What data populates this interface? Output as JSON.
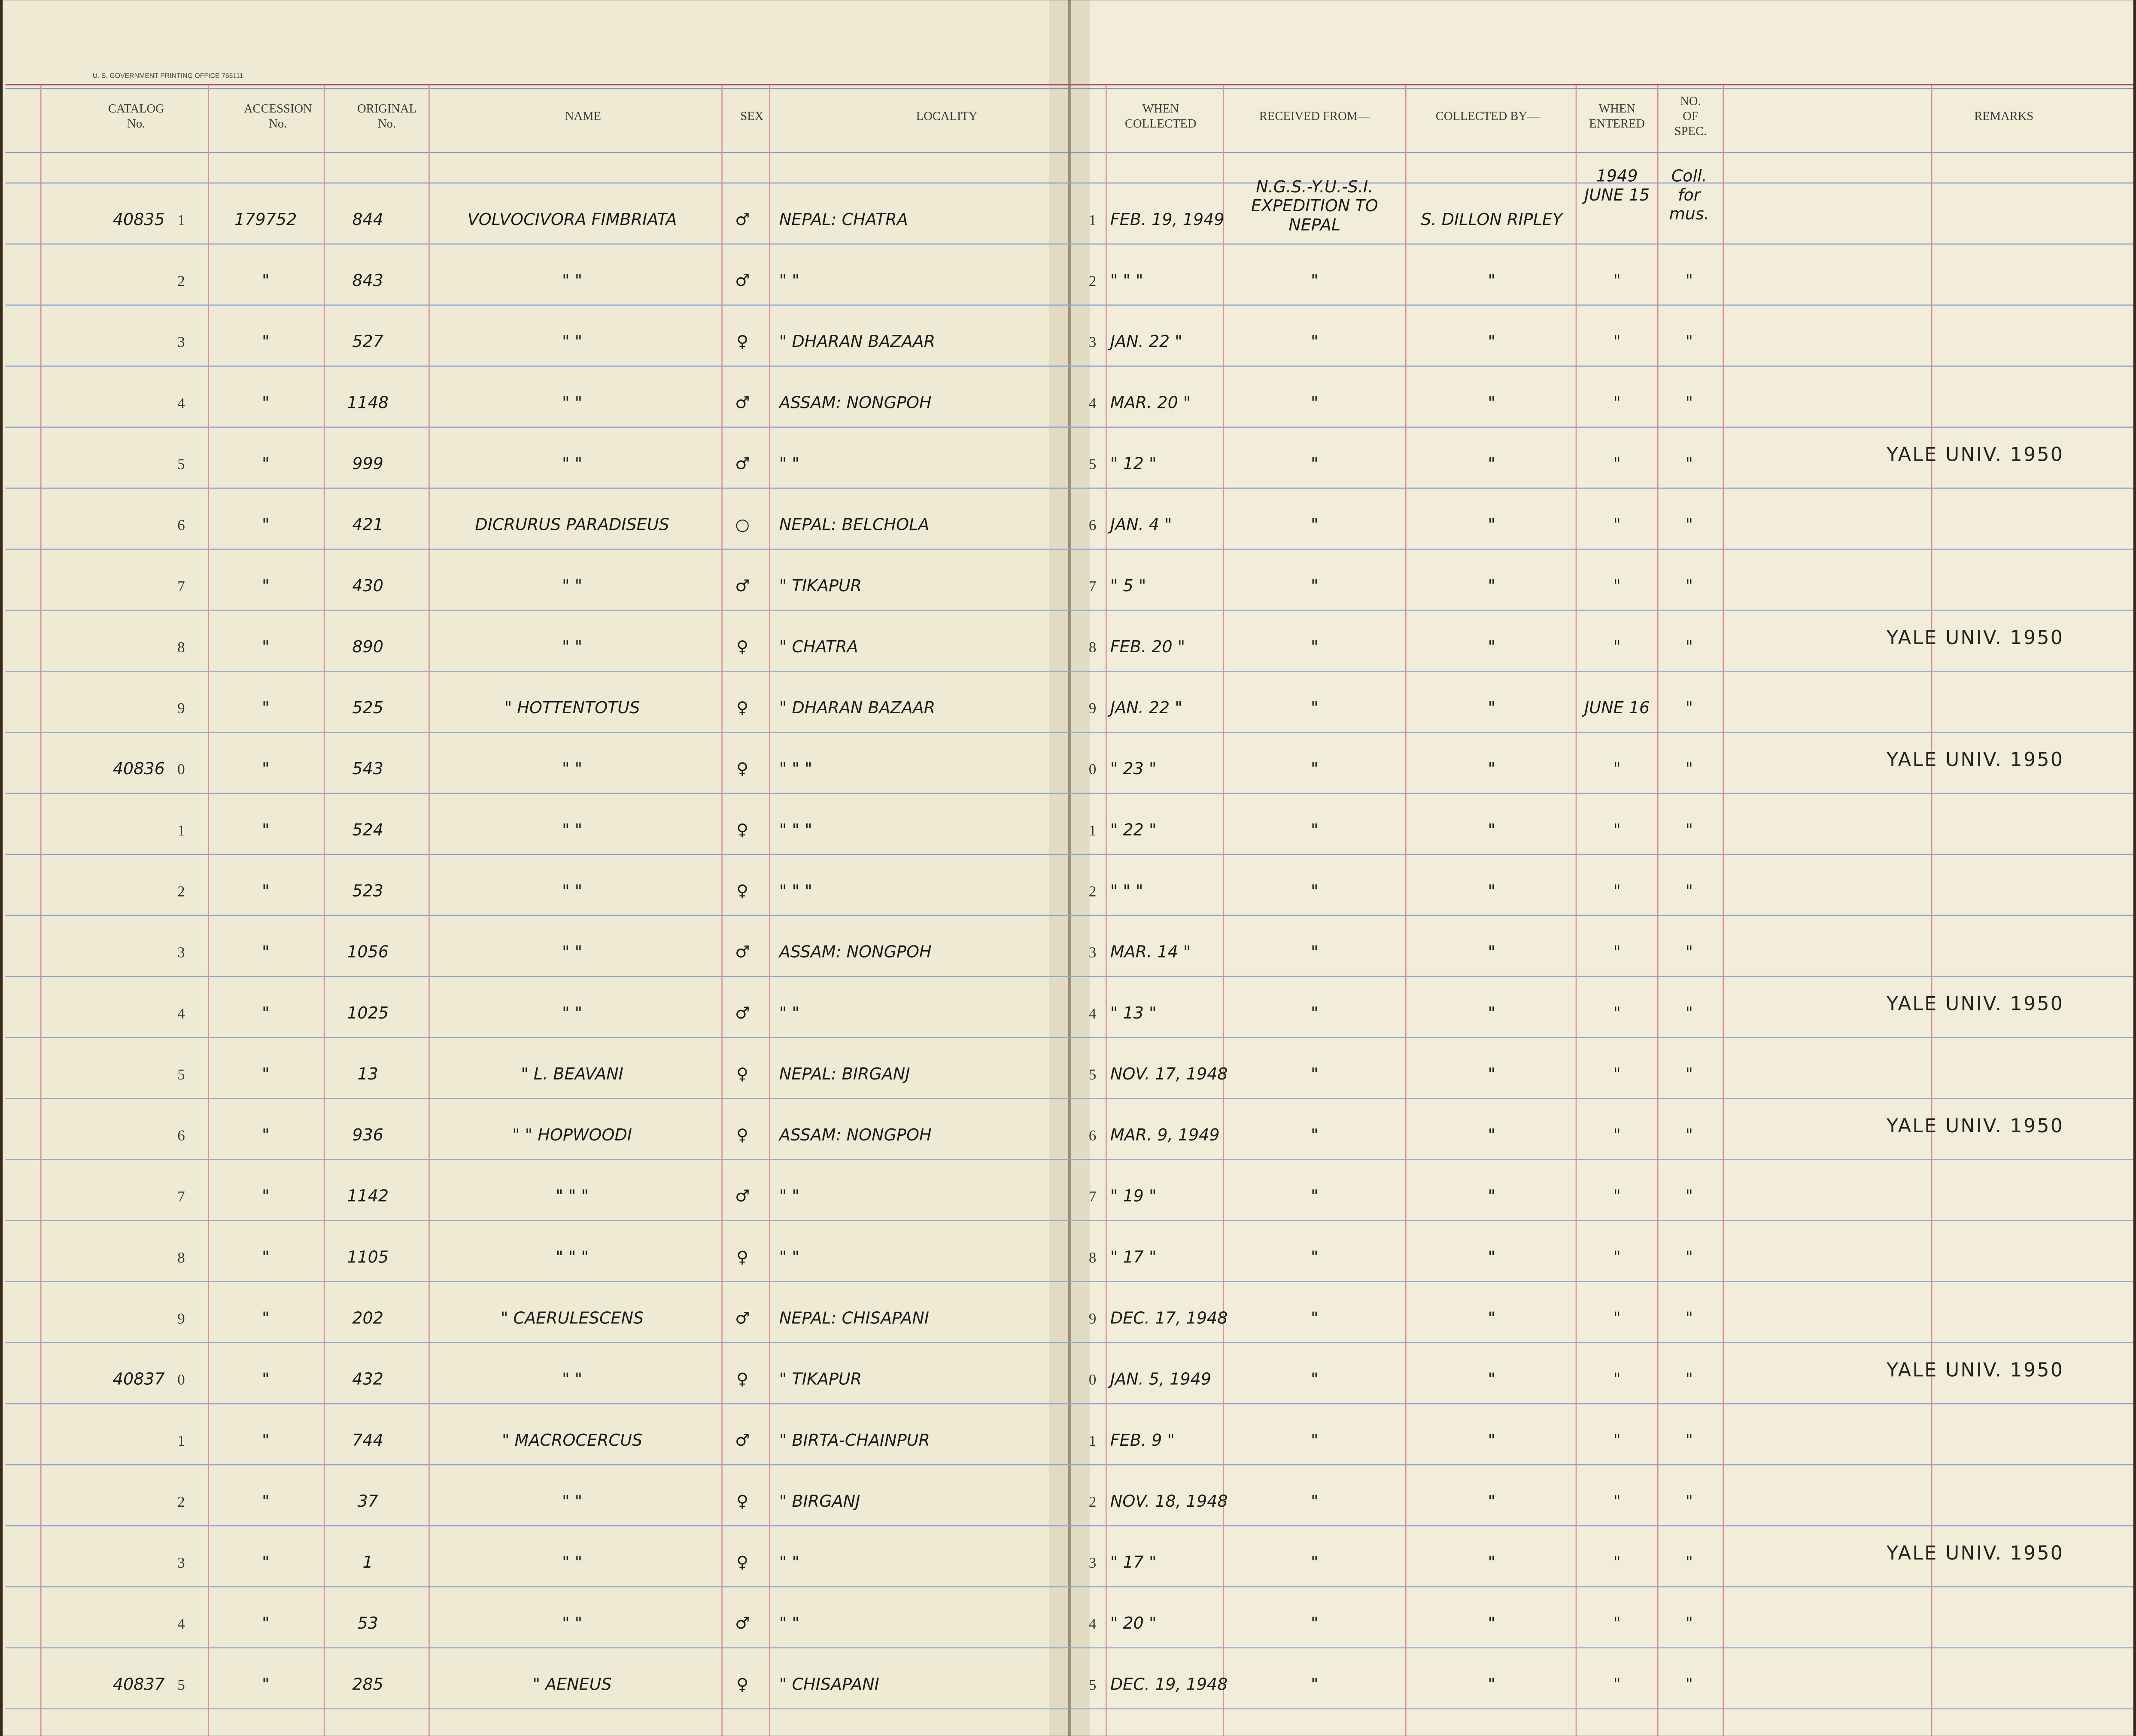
{
  "header": {
    "printer": "U. S. GOVERNMENT PRINTING OFFICE 765111",
    "columns": [
      {
        "key": "catalog",
        "lines": [
          "CATALOG",
          "No."
        ]
      },
      {
        "key": "acc",
        "lines": [
          "ACCESSION",
          "No."
        ]
      },
      {
        "key": "orig",
        "lines": [
          "ORIGINAL",
          "No."
        ]
      },
      {
        "key": "name",
        "lines": [
          "NAME"
        ]
      },
      {
        "key": "sex",
        "lines": [
          "SEX"
        ]
      },
      {
        "key": "loc",
        "lines": [
          "LOCALITY"
        ]
      },
      {
        "key": "when",
        "lines": [
          "WHEN",
          "COLLECTED"
        ]
      },
      {
        "key": "rec",
        "lines": [
          "RECEIVED FROM—"
        ]
      },
      {
        "key": "by",
        "lines": [
          "COLLECTED BY—"
        ]
      },
      {
        "key": "ent",
        "lines": [
          "WHEN",
          "ENTERED"
        ]
      },
      {
        "key": "spec",
        "lines": [
          "NO.",
          "OF",
          "SPEC."
        ]
      },
      {
        "key": "rem",
        "lines": [
          "REMARKS"
        ]
      }
    ]
  },
  "rows": [
    {
      "catalog": "40835",
      "n": "1",
      "acc": "179752",
      "orig": "844",
      "name": "VOLVOCIVORA FIMBRIATA",
      "sex": "♂",
      "loc": "NEPAL: CHATRA",
      "d": "1",
      "when": "FEB. 19, 1949",
      "rec": "N.G.S.-Y.U.-S.I. EXPEDITION TO NEPAL",
      "by": "S. DILLON RIPLEY",
      "ent": "1949 JUNE 15",
      "spec": "Coll. for mus."
    },
    {
      "n": "2",
      "acc": "\"",
      "orig": "843",
      "name": "\"     \"",
      "sex": "♂",
      "loc": "\"   \"",
      "d": "2",
      "when": "\"  \"  \"",
      "rec": "\"",
      "by": "\"",
      "ent": "\"",
      "spec": "\""
    },
    {
      "n": "3",
      "acc": "\"",
      "orig": "527",
      "name": "\"     \"",
      "sex": "♀",
      "loc": "\"   DHARAN BAZAAR",
      "d": "3",
      "when": "JAN. 22 \"",
      "rec": "\"",
      "by": "\"",
      "ent": "\"",
      "spec": "\""
    },
    {
      "n": "4",
      "acc": "\"",
      "orig": "1148",
      "name": "\"     \"",
      "sex": "♂",
      "loc": "ASSAM: NONGPOH",
      "d": "4",
      "when": "MAR. 20 \"",
      "rec": "\"",
      "by": "\"",
      "ent": "\"",
      "spec": "\""
    },
    {
      "n": "5",
      "acc": "\"",
      "orig": "999",
      "name": "\"     \"",
      "sex": "♂",
      "loc": "\"   \"",
      "d": "5",
      "when": "\" 12 \"",
      "rec": "\"",
      "by": "\"",
      "ent": "\"",
      "spec": "\"",
      "rem": "YALE UNIV. 1950"
    },
    {
      "n": "6",
      "acc": "\"",
      "orig": "421",
      "name": "DICRURUS PARADISEUS",
      "sex": "○",
      "loc": "NEPAL: BELCHOLA",
      "d": "6",
      "when": "JAN. 4 \"",
      "rec": "\"",
      "by": "\"",
      "ent": "\"",
      "spec": "\""
    },
    {
      "n": "7",
      "acc": "\"",
      "orig": "430",
      "name": "\"     \"",
      "sex": "♂",
      "loc": "\"   TIKAPUR",
      "d": "7",
      "when": "\" 5 \"",
      "rec": "\"",
      "by": "\"",
      "ent": "\"",
      "spec": "\""
    },
    {
      "n": "8",
      "acc": "\"",
      "orig": "890",
      "name": "\"     \"",
      "sex": "♀",
      "loc": "\"   CHATRA",
      "d": "8",
      "when": "FEB. 20 \"",
      "rec": "\"",
      "by": "\"",
      "ent": "\"",
      "spec": "\"",
      "rem": "YALE UNIV. 1950"
    },
    {
      "n": "9",
      "acc": "\"",
      "orig": "525",
      "name": "\"   HOTTENTOTUS",
      "sex": "♀",
      "loc": "\"   DHARAN BAZAAR",
      "d": "9",
      "when": "JAN. 22 \"",
      "rec": "\"",
      "by": "\"",
      "ent": "JUNE 16",
      "spec": "\""
    },
    {
      "catalog": "40836",
      "n": "0",
      "acc": "\"",
      "orig": "543",
      "name": "\"     \"",
      "sex": "♀",
      "loc": "\"   \"   \"",
      "d": "0",
      "when": "\" 23 \"",
      "rec": "\"",
      "by": "\"",
      "ent": "\"",
      "spec": "\"",
      "rem": "YALE UNIV. 1950"
    },
    {
      "n": "1",
      "acc": "\"",
      "orig": "524",
      "name": "\"     \"",
      "sex": "♀",
      "loc": "\"   \"   \"",
      "d": "1",
      "when": "\" 22 \"",
      "rec": "\"",
      "by": "\"",
      "ent": "\"",
      "spec": "\""
    },
    {
      "n": "2",
      "acc": "\"",
      "orig": "523",
      "name": "\"     \"",
      "sex": "♀",
      "loc": "\"   \"   \"",
      "d": "2",
      "when": "\"  \"  \"",
      "rec": "\"",
      "by": "\"",
      "ent": "\"",
      "spec": "\""
    },
    {
      "n": "3",
      "acc": "\"",
      "orig": "1056",
      "name": "\"     \"",
      "sex": "♂",
      "loc": "ASSAM: NONGPOH",
      "d": "3",
      "when": "MAR. 14 \"",
      "rec": "\"",
      "by": "\"",
      "ent": "\"",
      "spec": "\""
    },
    {
      "n": "4",
      "acc": "\"",
      "orig": "1025",
      "name": "\"     \"",
      "sex": "♂",
      "loc": "\"   \"",
      "d": "4",
      "when": "\" 13 \"",
      "rec": "\"",
      "by": "\"",
      "ent": "\"",
      "spec": "\"",
      "rem": "YALE UNIV. 1950"
    },
    {
      "n": "5",
      "acc": "\"",
      "orig": "13",
      "name": "\"   L. BEAVANI",
      "sex": "♀",
      "loc": "NEPAL: BIRGANJ",
      "d": "5",
      "when": "NOV. 17, 1948",
      "rec": "\"",
      "by": "\"",
      "ent": "\"",
      "spec": "\""
    },
    {
      "n": "6",
      "acc": "\"",
      "orig": "936",
      "name": "\"  \"  HOPWOODI",
      "sex": "♀",
      "loc": "ASSAM: NONGPOH",
      "d": "6",
      "when": "MAR. 9, 1949",
      "rec": "\"",
      "by": "\"",
      "ent": "\"",
      "spec": "\"",
      "rem": "YALE UNIV. 1950"
    },
    {
      "n": "7",
      "acc": "\"",
      "orig": "1142",
      "name": "\"   \"   \"",
      "sex": "♂",
      "loc": "\"   \"",
      "d": "7",
      "when": "\" 19 \"",
      "rec": "\"",
      "by": "\"",
      "ent": "\"",
      "spec": "\""
    },
    {
      "n": "8",
      "acc": "\"",
      "orig": "1105",
      "name": "\"   \"   \"",
      "sex": "♀",
      "loc": "\"   \"",
      "d": "8",
      "when": "\" 17 \"",
      "rec": "\"",
      "by": "\"",
      "ent": "\"",
      "spec": "\""
    },
    {
      "n": "9",
      "acc": "\"",
      "orig": "202",
      "name": "\"   CAERULESCENS",
      "sex": "♂",
      "loc": "NEPAL: CHISAPANI",
      "d": "9",
      "when": "DEC. 17, 1948",
      "rec": "\"",
      "by": "\"",
      "ent": "\"",
      "spec": "\""
    },
    {
      "catalog": "40837",
      "n": "0",
      "acc": "\"",
      "orig": "432",
      "name": "\"     \"",
      "sex": "♀",
      "loc": "\"   TIKAPUR",
      "d": "0",
      "when": "JAN. 5, 1949",
      "rec": "\"",
      "by": "\"",
      "ent": "\"",
      "spec": "\"",
      "rem": "YALE UNIV. 1950"
    },
    {
      "n": "1",
      "acc": "\"",
      "orig": "744",
      "name": "\"   MACROCERCUS",
      "sex": "♂",
      "loc": "\"   BIRTA-CHAINPUR",
      "d": "1",
      "when": "FEB. 9 \"",
      "rec": "\"",
      "by": "\"",
      "ent": "\"",
      "spec": "\""
    },
    {
      "n": "2",
      "acc": "\"",
      "orig": "37",
      "name": "\"     \"",
      "sex": "♀",
      "loc": "\"   BIRGANJ",
      "d": "2",
      "when": "NOV. 18, 1948",
      "rec": "\"",
      "by": "\"",
      "ent": "\"",
      "spec": "\""
    },
    {
      "n": "3",
      "acc": "\"",
      "orig": "1",
      "name": "\"     \"",
      "sex": "♀",
      "loc": "\"   \"",
      "d": "3",
      "when": "\" 17 \"",
      "rec": "\"",
      "by": "\"",
      "ent": "\"",
      "spec": "\"",
      "rem": "YALE UNIV. 1950"
    },
    {
      "n": "4",
      "acc": "\"",
      "orig": "53",
      "name": "\"     \"",
      "sex": "♂",
      "loc": "\"   \"",
      "d": "4",
      "when": "\" 20 \"",
      "rec": "\"",
      "by": "\"",
      "ent": "\"",
      "spec": "\""
    },
    {
      "catalog": "40837",
      "n": "5",
      "acc": "\"",
      "orig": "285",
      "name": "\"   AENEUS",
      "sex": "♀",
      "loc": "\"   CHISAPANI",
      "d": "5",
      "when": "DEC. 19, 1948",
      "rec": "\"",
      "by": "\"",
      "ent": "\"",
      "spec": "\""
    }
  ]
}
